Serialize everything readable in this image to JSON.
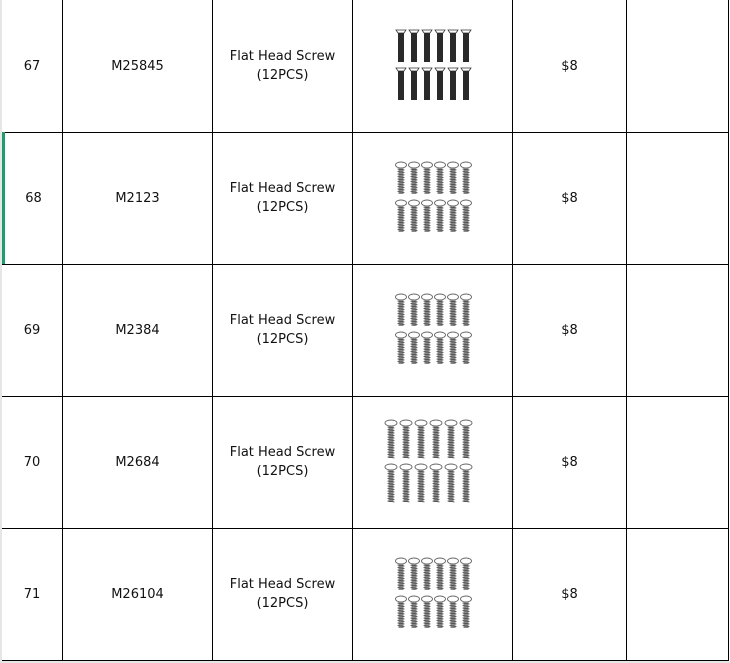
{
  "rows": [
    {
      "no": "67",
      "code": "M25845",
      "name": "Flat Head Screw",
      "qty": "(12PCS)",
      "image": "flat-head-black-screws",
      "price": "$8",
      "note": ""
    },
    {
      "no": "68",
      "code": "M2123",
      "name": "Flat Head Screw",
      "qty": "(12PCS)",
      "image": "pan-head-gray-screws",
      "price": "$8",
      "note": ""
    },
    {
      "no": "69",
      "code": "M2384",
      "name": "Flat Head Screw",
      "qty": "(12PCS)",
      "image": "pan-head-gray-screws",
      "price": "$8",
      "note": ""
    },
    {
      "no": "70",
      "code": "M2684",
      "name": "Flat Head Screw",
      "qty": "(12PCS)",
      "image": "pan-head-gray-screws",
      "price": "$8",
      "note": ""
    },
    {
      "no": "71",
      "code": "M26104",
      "name": "Flat Head Screw",
      "qty": "(12PCS)",
      "image": "pan-head-gray-screws",
      "price": "$8",
      "note": ""
    }
  ],
  "colors": {
    "selection": "#1f9d6b",
    "grid": "#000000"
  }
}
